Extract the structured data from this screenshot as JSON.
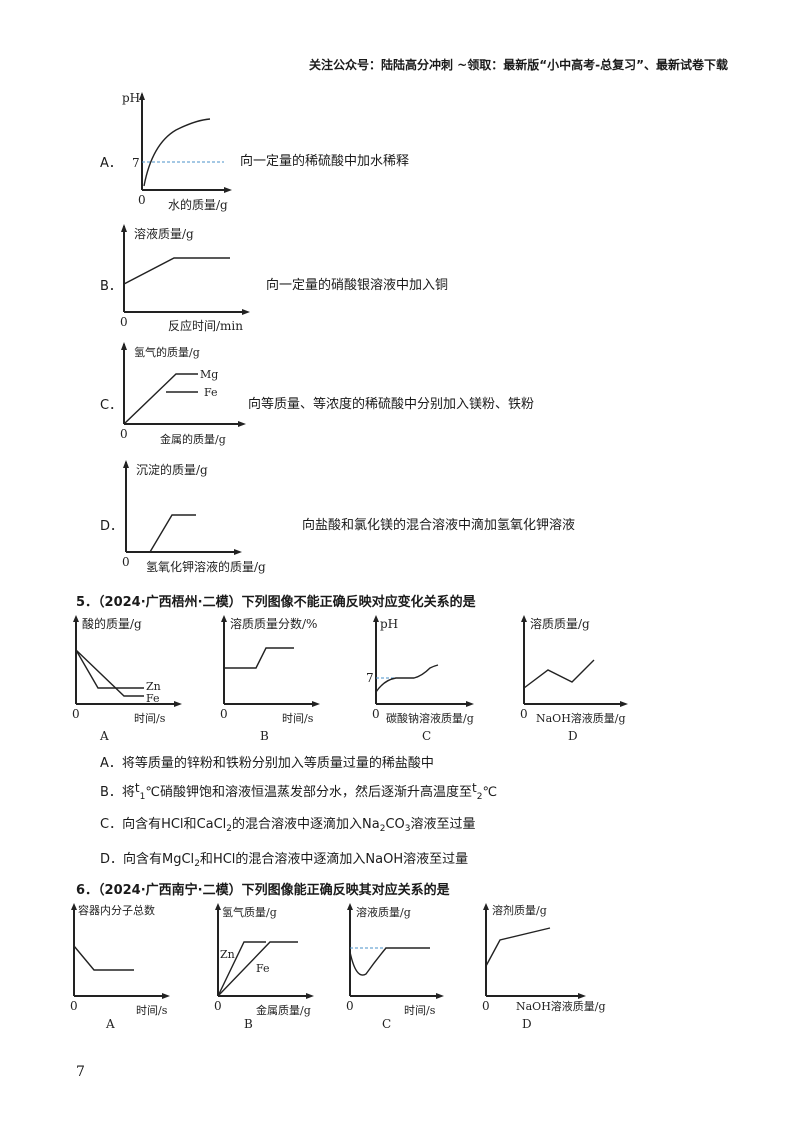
{
  "header": "关注公众号：陆陆高分冲刺 ~领取：最新版“小中高考-总复习”、最新试卷下载",
  "part1": {
    "A": {
      "label": "A．",
      "text": "向一定量的稀硫酸中加水稀释",
      "y_label": "pH",
      "tick7": "7",
      "origin": "0",
      "x_label": "水的质量/g"
    },
    "B": {
      "label": "B．",
      "text": "向一定量的硝酸银溶液中加入铜",
      "y_label": "溶液质量/g",
      "origin": "0",
      "x_label": "反应时间/min"
    },
    "C": {
      "label": "C．",
      "text": "向等质量、等浓度的稀硫酸中分别加入镁粉、铁粉",
      "y_label": "氢气的质量/g",
      "origin": "0",
      "x_label": "金属的质量/g",
      "mg": "Mg",
      "fe": "Fe"
    },
    "D": {
      "label": "D．",
      "text": "向盐酸和氯化镁的混合溶液中滴加氢氧化钾溶液",
      "y_label": "沉淀的质量/g",
      "origin": "0",
      "x_label": "氢氧化钾溶液的质量/g"
    }
  },
  "q5": {
    "title": "5．（2024·广西梧州·二模）下列图像不能正确反映对应变化关系的是",
    "graphs": {
      "A": {
        "y_label": "酸的质量/g",
        "x_label": "时间/s",
        "origin": "0",
        "zn": "Zn",
        "fe": "Fe",
        "caption": "A"
      },
      "B": {
        "y_label": "溶质质量分数/%",
        "x_label": "时间/s",
        "origin": "0",
        "caption": "B"
      },
      "C": {
        "y_label": "pH",
        "x_label": "碳酸钠溶液质量/g",
        "origin": "0",
        "tick7": "7",
        "caption": "C"
      },
      "D": {
        "y_label": "溶质质量/g",
        "x_label": "NaOH溶液质量/g",
        "origin": "0",
        "caption": "D"
      }
    },
    "choices": {
      "A": "A．将等质量的锌粉和铁粉分别加入等质量过量的稀盐酸中",
      "B_pre": "B．将",
      "B_t1": "t",
      "B_t1sub": "1",
      "B_mid": "℃硝酸钾饱和溶液恒温蒸发部分水，然后逐渐升高温度至",
      "B_t2": "t",
      "B_t2sub": "2",
      "B_end": "℃",
      "C_pre": "C．向含有",
      "C_hcl": "HCl",
      "C_and": "和",
      "C_cacl": "CaCl",
      "C_cacl_sub": "2",
      "C_mid": "的混合溶液中逐滴加入",
      "C_na": "Na",
      "C_na_sub": "2",
      "C_co": "CO",
      "C_co_sub": "3",
      "C_end": "溶液至过量",
      "D_pre": "D．向含有",
      "D_mg": "MgCl",
      "D_mg_sub": "2",
      "D_and": "和",
      "D_hcl": "HCl",
      "D_mid": "的混合溶液中逐滴加入",
      "D_naoh": "NaOH",
      "D_end": "溶液至过量"
    }
  },
  "q6": {
    "title": "6．（2024·广西南宁·二模）下列图像能正确反映其对应关系的是",
    "graphs": {
      "A": {
        "y_label": "容器内分子总数",
        "x_label": "时间/s",
        "origin": "0",
        "caption": "A"
      },
      "B": {
        "y_label": "氢气质量/g",
        "x_label": "金属质量/g",
        "origin": "0",
        "zn": "Zn",
        "fe": "Fe",
        "caption": "B"
      },
      "C": {
        "y_label": "溶液质量/g",
        "x_label": "时间/s",
        "origin": "0",
        "caption": "C"
      },
      "D": {
        "y_label": "溶剂质量/g",
        "x_label": "NaOH溶液质量/g",
        "origin": "0",
        "caption": "D"
      }
    }
  },
  "page_number": "7"
}
